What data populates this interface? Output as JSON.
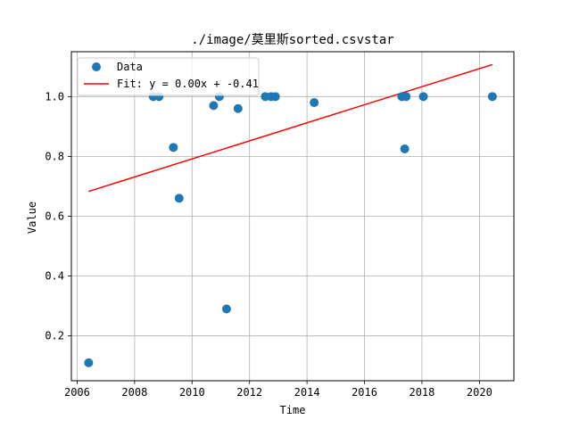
{
  "chart_data": {
    "type": "scatter",
    "title": "./image/莫里斯sorted.csvstar",
    "xlabel": "Time",
    "ylabel": "Value",
    "xlim": [
      2005.8,
      2021.2
    ],
    "ylim": [
      0.05,
      1.15
    ],
    "xticks": [
      2006,
      2008,
      2010,
      2012,
      2014,
      2016,
      2018,
      2020
    ],
    "yticks": [
      0.2,
      0.4,
      0.6,
      0.8,
      1.0
    ],
    "ytick_labels": [
      "0.2",
      "0.4",
      "0.6",
      "0.8",
      "1.0"
    ],
    "grid": true,
    "legend_position": "top-left",
    "colors": {
      "data": "#1f77b4",
      "fit": "#ff0000",
      "grid": "#b0b0b0"
    },
    "series": [
      {
        "name": "Data",
        "kind": "scatter",
        "points": [
          {
            "x": 2006.4,
            "y": 0.11
          },
          {
            "x": 2008.65,
            "y": 1.0
          },
          {
            "x": 2008.85,
            "y": 1.0
          },
          {
            "x": 2009.35,
            "y": 0.83
          },
          {
            "x": 2009.55,
            "y": 0.66
          },
          {
            "x": 2010.75,
            "y": 0.97
          },
          {
            "x": 2010.95,
            "y": 1.0
          },
          {
            "x": 2011.2,
            "y": 0.29
          },
          {
            "x": 2011.6,
            "y": 0.96
          },
          {
            "x": 2012.55,
            "y": 1.0
          },
          {
            "x": 2012.75,
            "y": 1.0
          },
          {
            "x": 2012.9,
            "y": 1.0
          },
          {
            "x": 2014.25,
            "y": 0.98
          },
          {
            "x": 2017.3,
            "y": 1.0
          },
          {
            "x": 2017.4,
            "y": 0.825
          },
          {
            "x": 2017.45,
            "y": 1.0
          },
          {
            "x": 2018.05,
            "y": 1.0
          },
          {
            "x": 2020.45,
            "y": 1.0
          }
        ]
      },
      {
        "name": "Fit: y = 0.00x + -0.41",
        "kind": "line",
        "points": [
          {
            "x": 2006.4,
            "y": 0.683
          },
          {
            "x": 2020.45,
            "y": 1.107
          }
        ]
      }
    ]
  }
}
